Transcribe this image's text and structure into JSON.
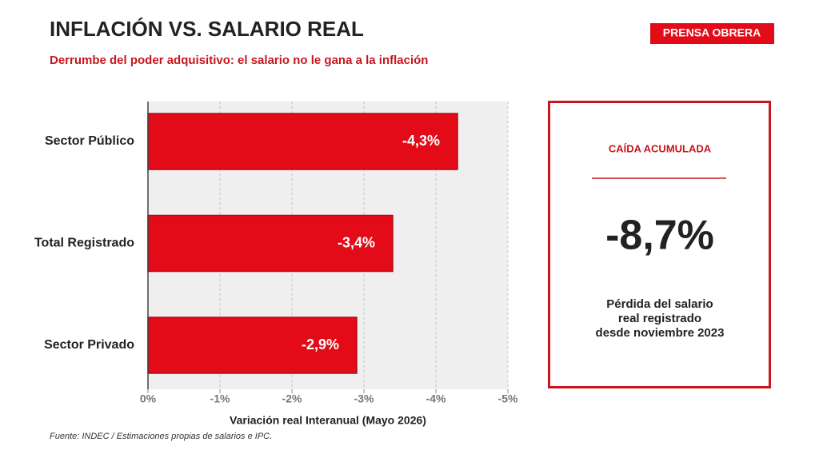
{
  "chart_data": {
    "type": "bar",
    "orientation": "horizontal",
    "title": "INFLACIÓN VS. SALARIO REAL",
    "subtitle": "Derrumbe del poder adquisitivo: el salario no le gana a la inflación",
    "brand": "PRENSA OBRERA",
    "categories": [
      "Sector Público",
      "Total Registrado",
      "Sector Privado"
    ],
    "values": [
      -4.3,
      -3.4,
      -2.9
    ],
    "value_labels": [
      "-4,3%",
      "-3,4%",
      "-2,9%"
    ],
    "color": "#e30b17",
    "xlim": [
      0,
      -5
    ],
    "xticks": [
      {
        "value": 0,
        "label": "0%"
      },
      {
        "value": -1,
        "label": "-1%"
      },
      {
        "value": -2,
        "label": "-2%"
      },
      {
        "value": -3,
        "label": "-3%"
      },
      {
        "value": -4,
        "label": "-4%"
      },
      {
        "value": -5,
        "label": "-5%"
      }
    ],
    "grid": true,
    "xlabel": "Variación real Interanual (Mayo 2026)",
    "source": "Fuente: INDEC / Estimaciones propias de salarios e IPC.",
    "panel": {
      "heading": "CAÍDA ACUMULADA",
      "value": "-8,7%",
      "description": [
        "Pérdida del salario",
        "real registrado",
        "desde noviembre 2023"
      ]
    }
  }
}
